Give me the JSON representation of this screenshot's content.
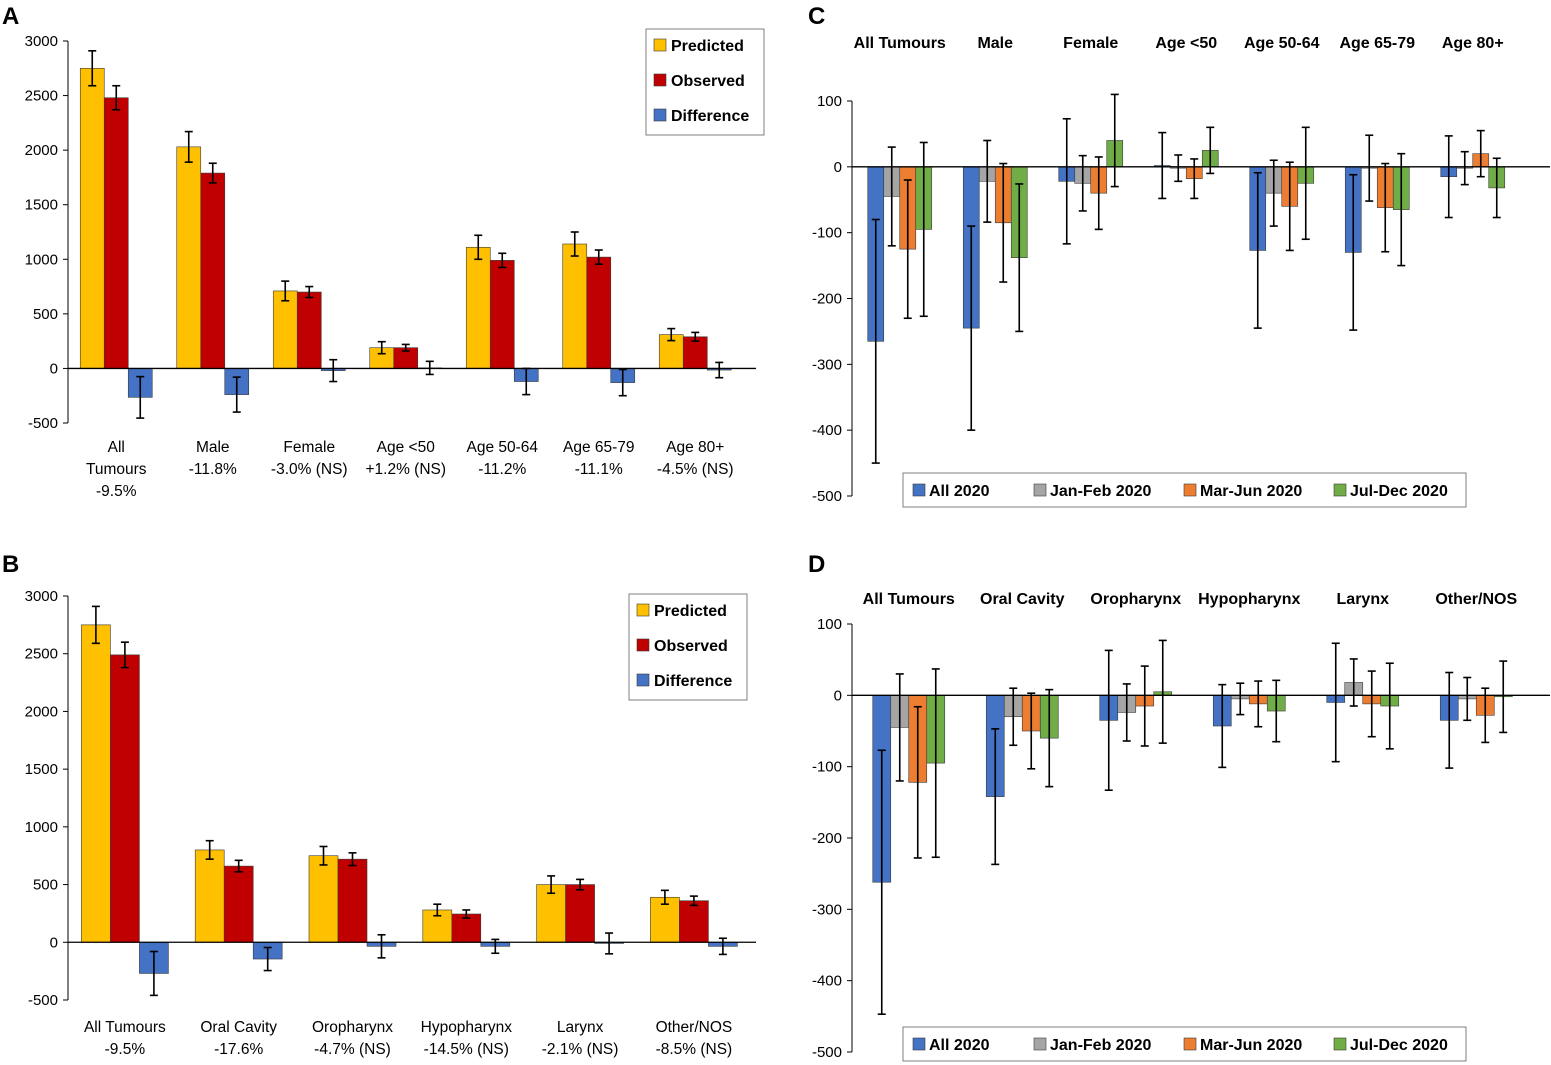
{
  "colors": {
    "predicted": "#FFC000",
    "observed": "#C00000",
    "difference": "#4472C4",
    "all_2020": "#4472C4",
    "jan_feb_2020": "#A5A5A5",
    "mar_jun_2020": "#ED7D31",
    "jul_dec_2020": "#70AD47"
  },
  "chart_data": [
    {
      "panel": "A",
      "type": "bar",
      "ylim": [
        -500,
        3000
      ],
      "yticks": [
        3000,
        2500,
        2000,
        1500,
        1000,
        500,
        0,
        -500
      ],
      "legend": [
        "Predicted",
        "Observed",
        "Difference"
      ],
      "categories": [
        [
          "All",
          "Tumours",
          "-9.5%"
        ],
        [
          "Male",
          "-11.8%"
        ],
        [
          "Female",
          "-3.0% (NS)"
        ],
        [
          "Age <50",
          "+1.2% (NS)"
        ],
        [
          "Age 50-64",
          "-11.2%"
        ],
        [
          "Age 65-79",
          "-11.1%"
        ],
        [
          "Age 80+",
          "-4.5% (NS)"
        ]
      ],
      "series": [
        {
          "name": "Predicted",
          "values": [
            2750,
            2030,
            710,
            190,
            1110,
            1140,
            310
          ],
          "err": [
            160,
            140,
            90,
            55,
            110,
            110,
            55
          ]
        },
        {
          "name": "Observed",
          "values": [
            2480,
            1790,
            700,
            190,
            990,
            1020,
            290
          ],
          "err": [
            110,
            90,
            50,
            30,
            65,
            65,
            40
          ]
        },
        {
          "name": "Difference",
          "values": [
            -265,
            -240,
            -20,
            5,
            -120,
            -130,
            -15
          ],
          "err": [
            190,
            160,
            100,
            60,
            120,
            120,
            70
          ]
        }
      ]
    },
    {
      "panel": "B",
      "type": "bar",
      "ylim": [
        -500,
        3000
      ],
      "yticks": [
        3000,
        2500,
        2000,
        1500,
        1000,
        500,
        0,
        -500
      ],
      "legend": [
        "Predicted",
        "Observed",
        "Difference"
      ],
      "categories": [
        [
          "All Tumours",
          "-9.5%"
        ],
        [
          "Oral Cavity",
          "-17.6%"
        ],
        [
          "Oropharynx",
          "-4.7% (NS)"
        ],
        [
          "Hypopharynx",
          "-14.5% (NS)"
        ],
        [
          "Larynx",
          "-2.1% (NS)"
        ],
        [
          "Other/NOS",
          "-8.5% (NS)"
        ]
      ],
      "series": [
        {
          "name": "Predicted",
          "values": [
            2750,
            800,
            750,
            280,
            500,
            390
          ],
          "err": [
            160,
            80,
            80,
            50,
            75,
            60
          ]
        },
        {
          "name": "Observed",
          "values": [
            2490,
            660,
            720,
            245,
            500,
            360
          ],
          "err": [
            110,
            50,
            55,
            35,
            45,
            40
          ]
        },
        {
          "name": "Difference",
          "values": [
            -270,
            -145,
            -35,
            -35,
            -10,
            -35
          ],
          "err": [
            190,
            100,
            100,
            60,
            90,
            70
          ]
        }
      ]
    },
    {
      "panel": "C",
      "type": "bar",
      "ylim": [
        -500,
        100
      ],
      "yticks": [
        100,
        0,
        -100,
        -200,
        -300,
        -400,
        -500
      ],
      "legend": [
        "All 2020",
        "Jan-Feb 2020",
        "Mar-Jun 2020",
        "Jul-Dec 2020"
      ],
      "categories": [
        "All Tumours",
        "Male",
        "Female",
        "Age <50",
        "Age 50-64",
        "Age 65-79",
        "Age 80+"
      ],
      "series": [
        {
          "name": "All 2020",
          "values": [
            -265,
            -245,
            -22,
            2,
            -127,
            -130,
            -15
          ],
          "err": [
            185,
            155,
            95,
            50,
            118,
            118,
            62
          ]
        },
        {
          "name": "Jan-Feb 2020",
          "values": [
            -45,
            -22,
            -25,
            -2,
            -40,
            -2,
            -2
          ],
          "err": [
            75,
            62,
            42,
            20,
            50,
            50,
            25
          ]
        },
        {
          "name": "Mar-Jun 2020",
          "values": [
            -125,
            -85,
            -40,
            -18,
            -60,
            -62,
            20
          ],
          "err": [
            105,
            90,
            55,
            30,
            67,
            67,
            35
          ]
        },
        {
          "name": "Jul-Dec 2020",
          "values": [
            -95,
            -138,
            40,
            25,
            -25,
            -65,
            -32
          ],
          "err": [
            132,
            112,
            70,
            35,
            85,
            85,
            45
          ]
        }
      ]
    },
    {
      "panel": "D",
      "type": "bar",
      "ylim": [
        -500,
        100
      ],
      "yticks": [
        100,
        0,
        -100,
        -200,
        -300,
        -400,
        -500
      ],
      "legend": [
        "All 2020",
        "Jan-Feb 2020",
        "Mar-Jun 2020",
        "Jul-Dec 2020"
      ],
      "categories": [
        "All Tumours",
        "Oral Cavity",
        "Oropharynx",
        "Hypopharynx",
        "Larynx",
        "Other/NOS"
      ],
      "series": [
        {
          "name": "All 2020",
          "values": [
            -262,
            -142,
            -35,
            -43,
            -10,
            -35
          ],
          "err": [
            185,
            95,
            98,
            58,
            83,
            67
          ]
        },
        {
          "name": "Jan-Feb 2020",
          "values": [
            -45,
            -30,
            -24,
            -5,
            18,
            -5
          ],
          "err": [
            75,
            40,
            40,
            22,
            33,
            30
          ]
        },
        {
          "name": "Mar-Jun 2020",
          "values": [
            -122,
            -50,
            -15,
            -12,
            -12,
            -28
          ],
          "err": [
            106,
            53,
            56,
            32,
            46,
            38
          ]
        },
        {
          "name": "Jul-Dec 2020",
          "values": [
            -95,
            -60,
            5,
            -22,
            -15,
            -2
          ],
          "err": [
            132,
            68,
            72,
            43,
            60,
            50
          ]
        }
      ]
    }
  ]
}
